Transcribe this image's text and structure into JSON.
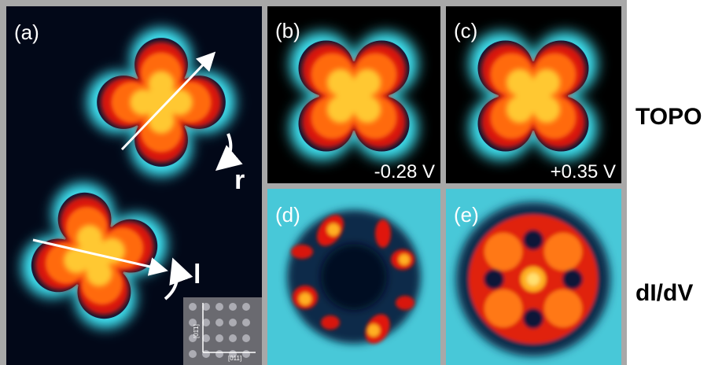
{
  "panels": [
    {
      "label": "(a)"
    },
    {
      "label": "(b)",
      "bias": "-0.28 V"
    },
    {
      "label": "(c)",
      "bias": "+0.35 V"
    },
    {
      "label": "(d)"
    },
    {
      "label": "(e)"
    }
  ],
  "rotation_labels": [
    "r",
    "l"
  ],
  "inset_axes": [
    "[011]",
    "[01̄1]"
  ],
  "row_labels": [
    "TOPO",
    "dI/dV"
  ]
}
